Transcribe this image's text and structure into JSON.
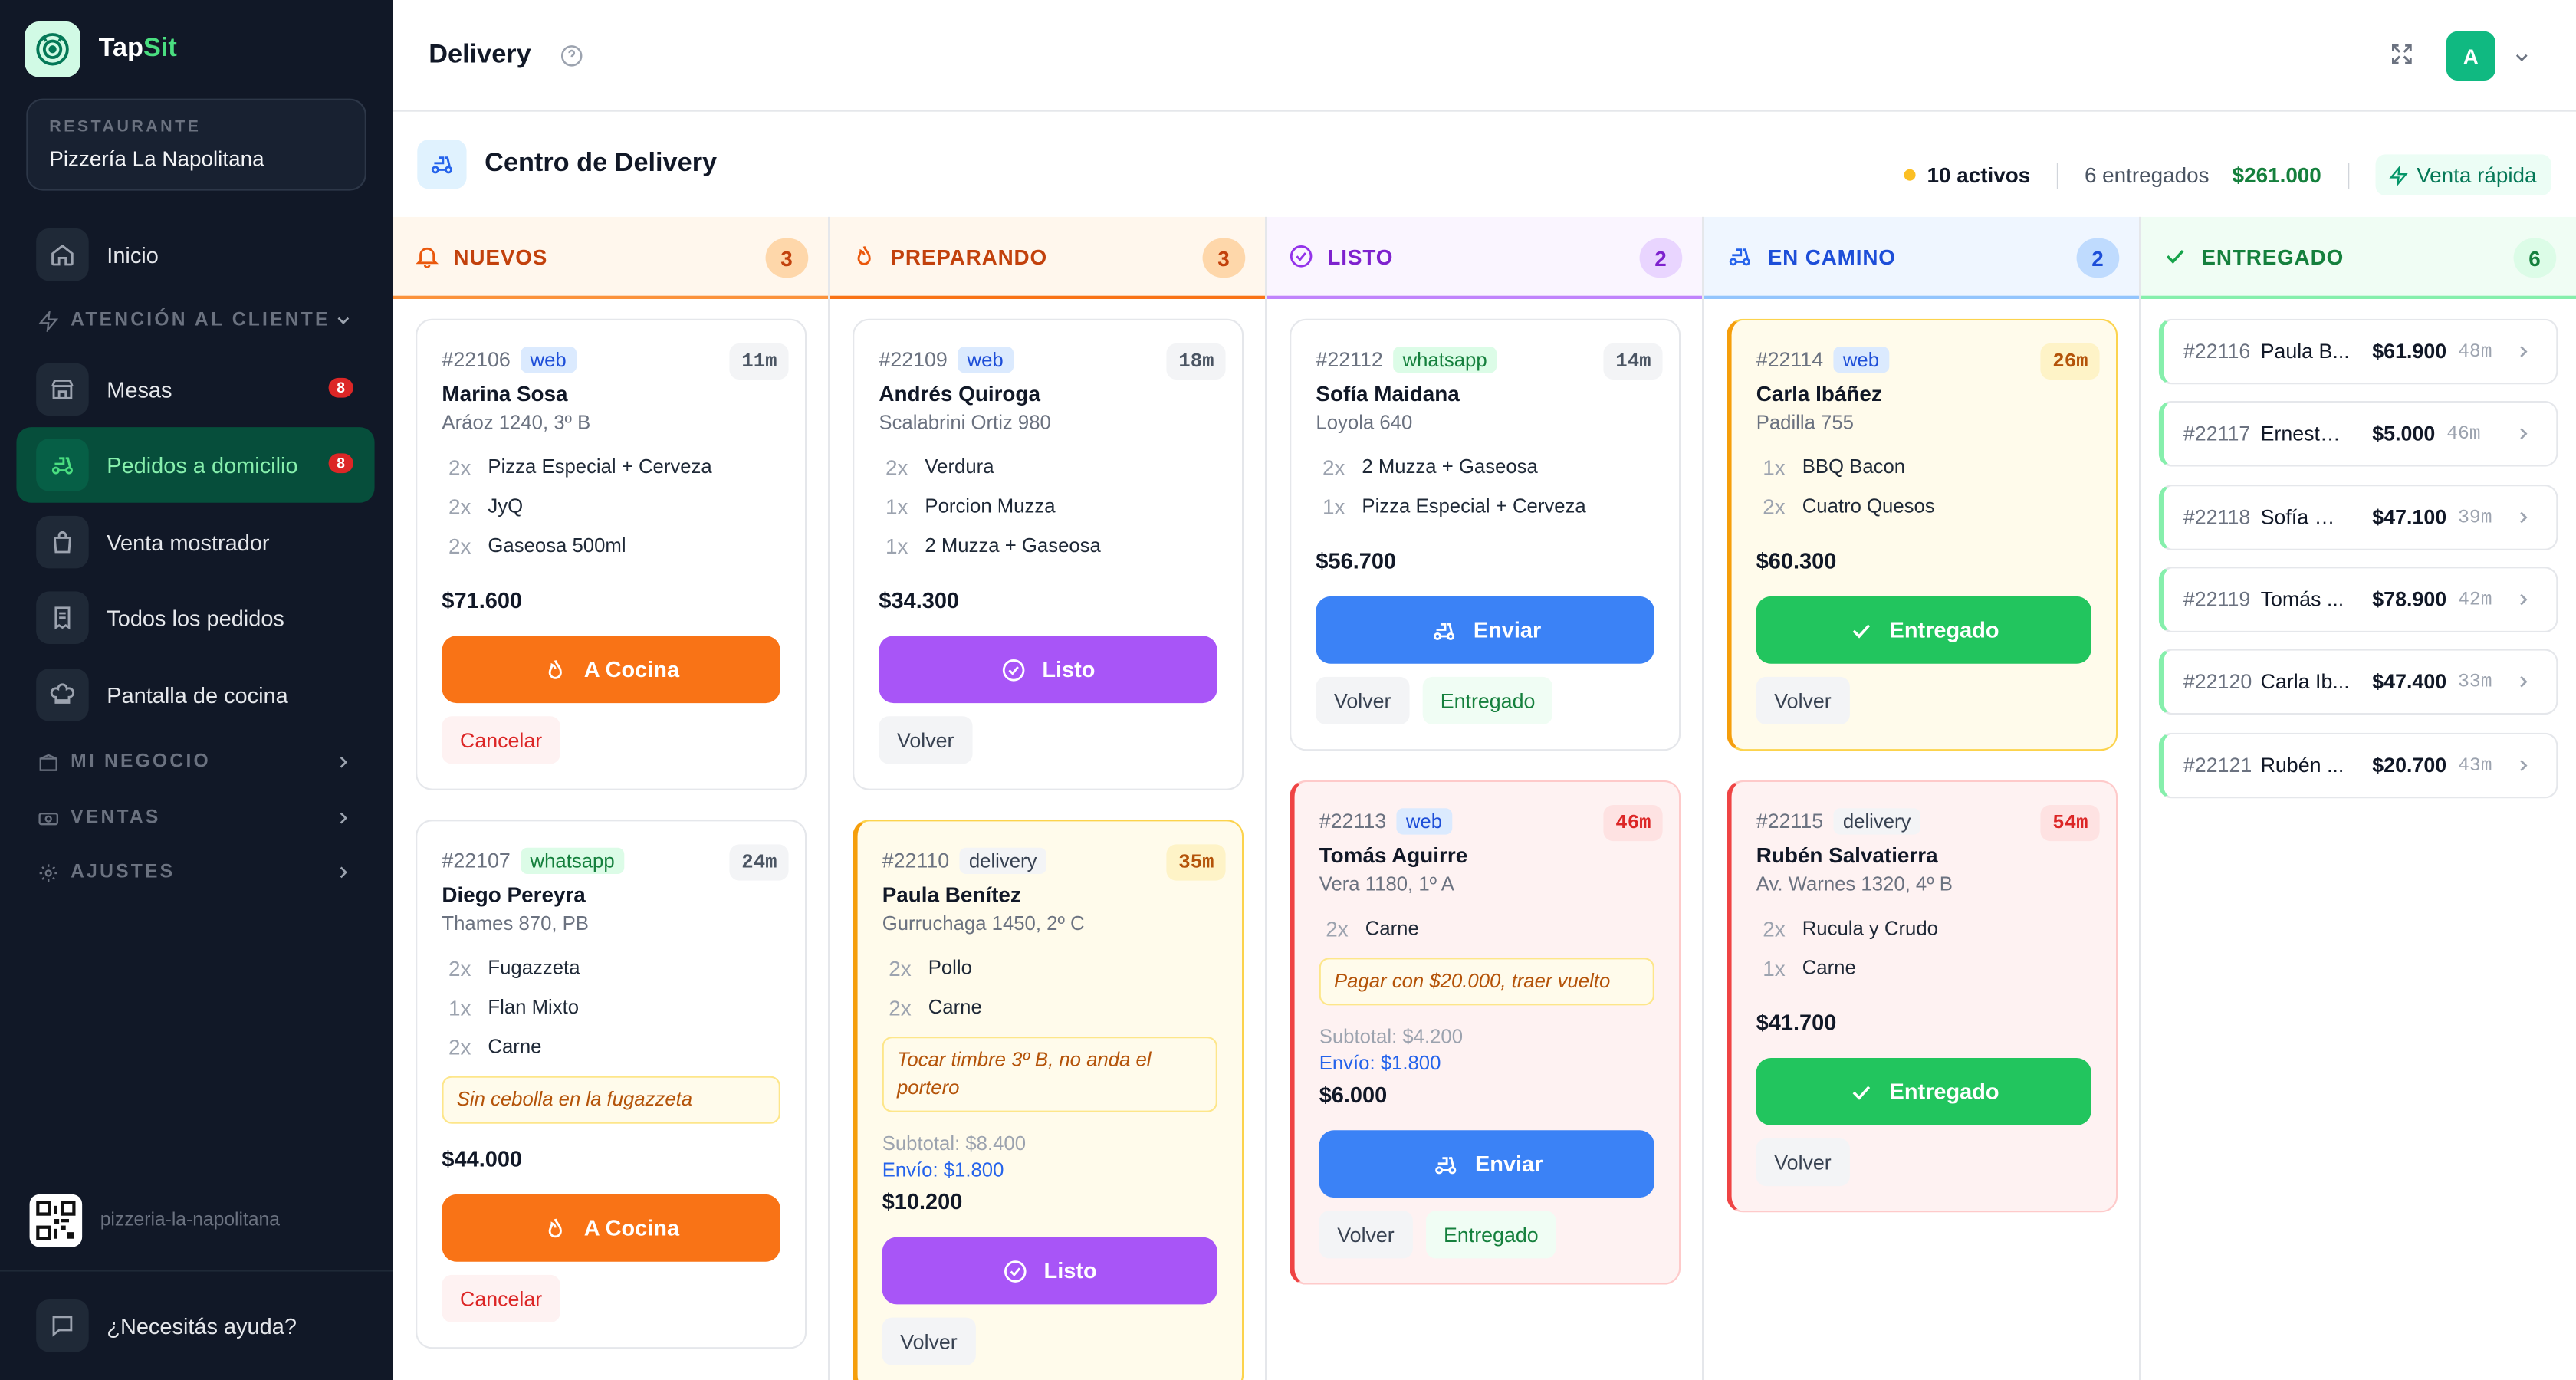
{
  "brand": {
    "part1": "Tap",
    "part2": "Sit"
  },
  "restaurant": {
    "label": "RESTAURANTE",
    "name": "Pizzería La Napolitana"
  },
  "nav": {
    "inicio": "Inicio",
    "atencion": "ATENCIÓN AL CLIENTE",
    "mesas": "Mesas",
    "mesas_badge": "8",
    "pedidos": "Pedidos a domicilio",
    "pedidos_badge": "8",
    "mostrador": "Venta mostrador",
    "todos": "Todos los pedidos",
    "cocina": "Pantalla de cocina",
    "negocio": "MI NEGOCIO",
    "ventas": "VENTAS",
    "ajustes": "AJUSTES"
  },
  "qr_slug": "pizzeria-la-napolitana",
  "help": "¿Necesitás ayuda?",
  "page_title": "Delivery",
  "avatar": "A",
  "center": {
    "title": "Centro de Delivery",
    "activos": "10 activos",
    "entregados": "6 entregados",
    "total": "$261.000",
    "venta_rapida": "Venta rápida"
  },
  "columns": {
    "nuevos": {
      "title": "NUEVOS",
      "count": "3",
      "color": "#f97316"
    },
    "preparando": {
      "title": "PREPARANDO",
      "count": "3",
      "color": "#ea580c"
    },
    "listo": {
      "title": "LISTO",
      "count": "2",
      "color": "#9333ea"
    },
    "camino": {
      "title": "EN CAMINO",
      "count": "2",
      "color": "#2563eb"
    },
    "entregado": {
      "title": "ENTREGADO",
      "count": "6",
      "color": "#16a34a"
    }
  },
  "orders": {
    "o22106": {
      "id": "#22106",
      "tag": "web",
      "time": "11m",
      "name": "Marina Sosa",
      "addr": "Aráoz 1240, 3º B",
      "items": [
        {
          "q": "2x",
          "n": "Pizza Especial + Cerveza"
        },
        {
          "q": "2x",
          "n": "JyQ"
        },
        {
          "q": "2x",
          "n": "Gaseosa 500ml"
        }
      ],
      "total": "$71.600",
      "btn": "A Cocina",
      "b1": "Cancelar"
    },
    "o22107": {
      "id": "#22107",
      "tag": "whatsapp",
      "time": "24m",
      "name": "Diego Pereyra",
      "addr": "Thames 870, PB",
      "items": [
        {
          "q": "2x",
          "n": "Fugazzeta"
        },
        {
          "q": "1x",
          "n": "Flan Mixto"
        },
        {
          "q": "2x",
          "n": "Carne"
        }
      ],
      "note": "Sin cebolla en la fugazzeta",
      "total": "$44.000",
      "btn": "A Cocina",
      "b1": "Cancelar"
    },
    "o22109": {
      "id": "#22109",
      "tag": "web",
      "time": "18m",
      "name": "Andrés Quiroga",
      "addr": "Scalabrini Ortiz 980",
      "items": [
        {
          "q": "2x",
          "n": "Verdura"
        },
        {
          "q": "1x",
          "n": "Porcion Muzza"
        },
        {
          "q": "1x",
          "n": "2 Muzza + Gaseosa"
        }
      ],
      "total": "$34.300",
      "btn": "Listo",
      "b1": "Volver"
    },
    "o22110": {
      "id": "#22110",
      "tag": "delivery",
      "time": "35m",
      "name": "Paula Benítez",
      "addr": "Gurruchaga 1450, 2º C",
      "items": [
        {
          "q": "2x",
          "n": "Pollo"
        },
        {
          "q": "2x",
          "n": "Carne"
        }
      ],
      "note": "Tocar timbre 3º B, no anda el portero",
      "subtotal": "Subtotal: $8.400",
      "envio": "Envío: $1.800",
      "total": "$10.200",
      "btn": "Listo",
      "b1": "Volver"
    },
    "o22112": {
      "id": "#22112",
      "tag": "whatsapp",
      "time": "14m",
      "name": "Sofía Maidana",
      "addr": "Loyola 640",
      "items": [
        {
          "q": "2x",
          "n": "2 Muzza + Gaseosa"
        },
        {
          "q": "1x",
          "n": "Pizza Especial + Cerveza"
        }
      ],
      "total": "$56.700",
      "btn": "Enviar",
      "b1": "Volver",
      "b2": "Entregado"
    },
    "o22113": {
      "id": "#22113",
      "tag": "web",
      "time": "46m",
      "name": "Tomás Aguirre",
      "addr": "Vera 1180, 1º A",
      "items": [
        {
          "q": "2x",
          "n": "Carne"
        }
      ],
      "note": "Pagar con $20.000, traer vuelto",
      "subtotal": "Subtotal: $4.200",
      "envio": "Envío: $1.800",
      "total": "$6.000",
      "btn": "Enviar",
      "b1": "Volver",
      "b2": "Entregado"
    },
    "o22114": {
      "id": "#22114",
      "tag": "web",
      "time": "26m",
      "name": "Carla Ibáñez",
      "addr": "Padilla 755",
      "items": [
        {
          "q": "1x",
          "n": "BBQ Bacon"
        },
        {
          "q": "2x",
          "n": "Cuatro Quesos"
        }
      ],
      "total": "$60.300",
      "btn": "Entregado",
      "b1": "Volver"
    },
    "o22115": {
      "id": "#22115",
      "tag": "delivery",
      "time": "54m",
      "name": "Rubén Salvatierra",
      "addr": "Av. Warnes 1320, 4º B",
      "items": [
        {
          "q": "2x",
          "n": "Rucula y Crudo"
        },
        {
          "q": "1x",
          "n": "Carne"
        }
      ],
      "total": "$41.700",
      "btn": "Entregado",
      "b1": "Volver"
    }
  },
  "delivered": [
    {
      "id": "#22116",
      "name": "Paula B...",
      "amount": "$61.900",
      "time": "48m"
    },
    {
      "id": "#22117",
      "name": "Ernesto ...",
      "amount": "$5.000",
      "time": "46m"
    },
    {
      "id": "#22118",
      "name": "Sofía Ma...",
      "amount": "$47.100",
      "time": "39m"
    },
    {
      "id": "#22119",
      "name": "Tomás ...",
      "amount": "$78.900",
      "time": "42m"
    },
    {
      "id": "#22120",
      "name": "Carla Ib...",
      "amount": "$47.400",
      "time": "33m"
    },
    {
      "id": "#22121",
      "name": "Rubén ...",
      "amount": "$20.700",
      "time": "43m"
    }
  ]
}
